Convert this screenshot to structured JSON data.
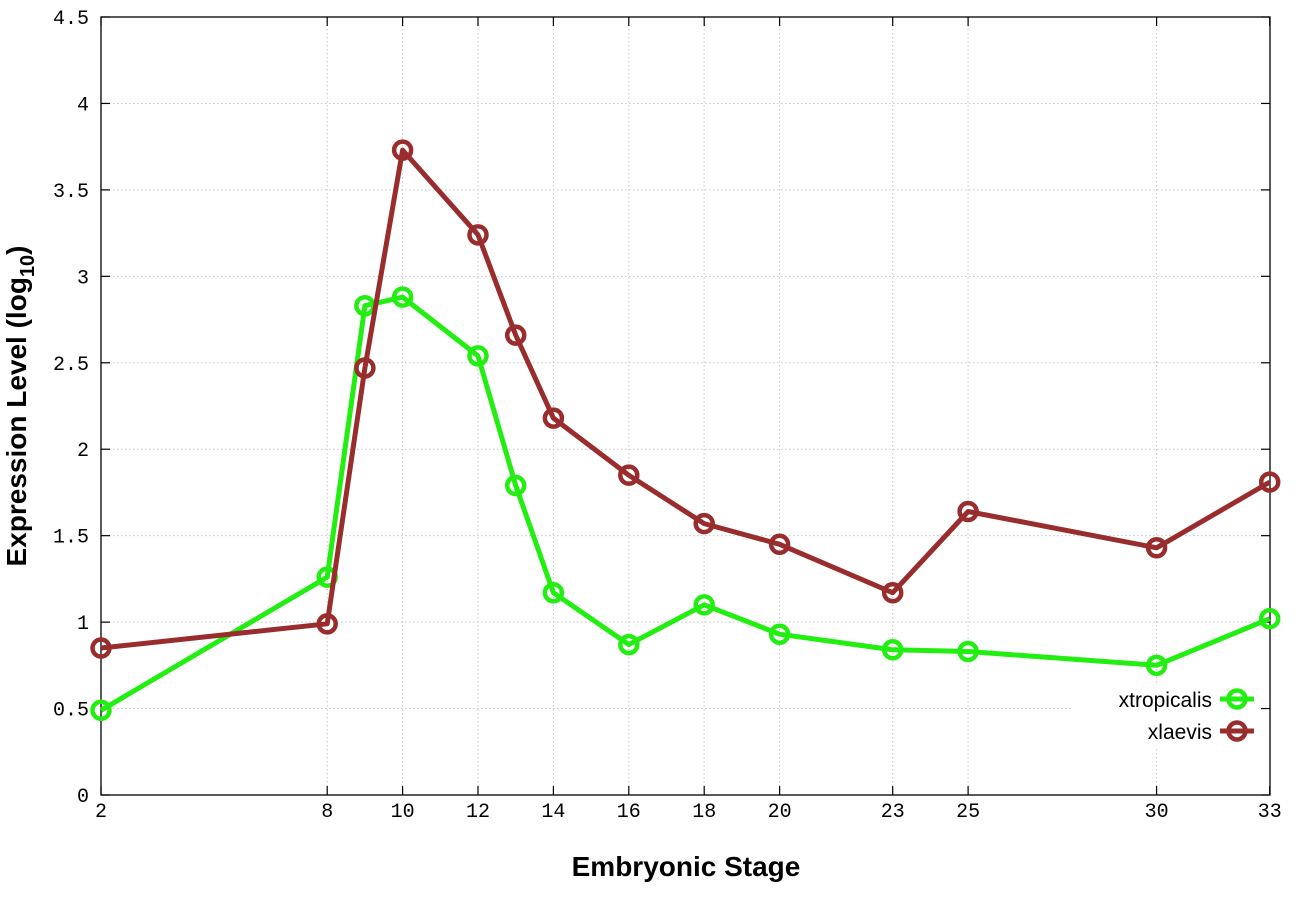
{
  "chart_data": {
    "type": "line",
    "title": "",
    "xlabel": "Embryonic Stage",
    "ylabel_main": "Expression Level (log",
    "ylabel_sub": "10",
    "ylabel_close": ")",
    "xlim": [
      2,
      33
    ],
    "ylim": [
      0,
      4.5
    ],
    "x_ticks": [
      2,
      8,
      10,
      12,
      14,
      16,
      18,
      20,
      23,
      25,
      30,
      33
    ],
    "x_tick_labels": [
      "2",
      "8",
      "10",
      "12",
      "14",
      "16",
      "18",
      "20",
      "23",
      "25",
      "30",
      "33"
    ],
    "y_ticks": [
      0,
      0.5,
      1,
      1.5,
      2,
      2.5,
      3,
      3.5,
      4,
      4.5
    ],
    "y_tick_labels": [
      "0",
      "0.5",
      "1",
      "1.5",
      "2",
      "2.5",
      "3",
      "3.5",
      "4",
      "4.5"
    ],
    "grid": true,
    "legend_position": "bottom-right",
    "series": [
      {
        "name": "xtropicalis",
        "color": "#22ee11",
        "x": [
          2,
          8,
          9,
          10,
          12,
          13,
          14,
          16,
          18,
          20,
          23,
          25,
          30,
          33
        ],
        "y": [
          0.49,
          1.26,
          2.83,
          2.88,
          2.54,
          1.79,
          1.17,
          0.87,
          1.1,
          0.93,
          0.84,
          0.83,
          0.75,
          1.02
        ]
      },
      {
        "name": "xlaevis",
        "color": "#992d2d",
        "x": [
          2,
          8,
          9,
          10,
          12,
          13,
          14,
          16,
          18,
          20,
          23,
          25,
          30,
          33
        ],
        "y": [
          0.85,
          0.99,
          2.47,
          3.73,
          3.24,
          2.66,
          2.18,
          1.85,
          1.57,
          1.45,
          1.17,
          1.64,
          1.43,
          1.81
        ]
      }
    ]
  }
}
